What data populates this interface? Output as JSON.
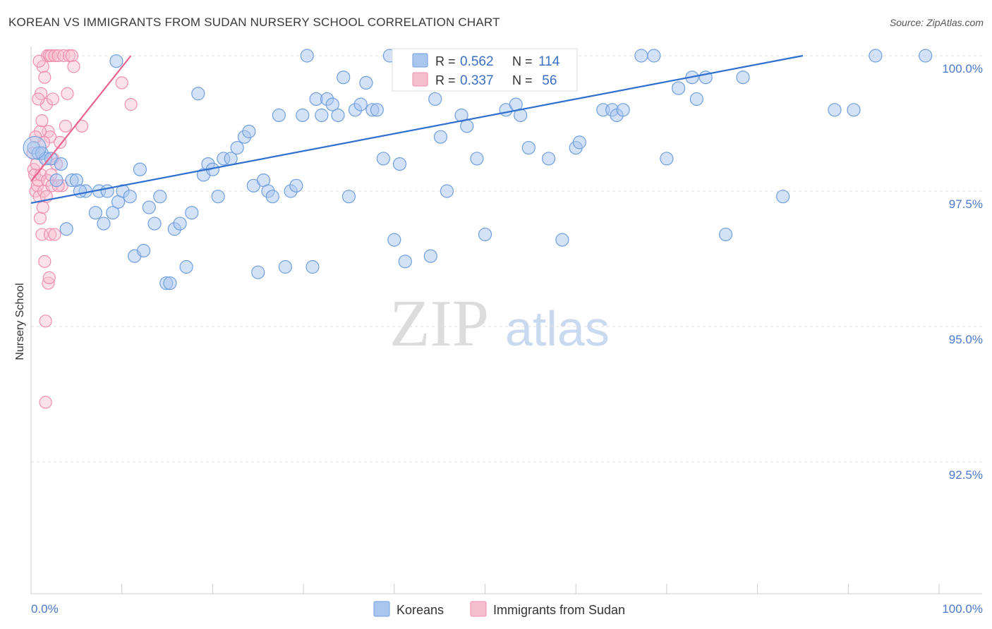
{
  "title": "KOREAN VS IMMIGRANTS FROM SUDAN NURSERY SCHOOL CORRELATION CHART",
  "source": "Source: ZipAtlas.com",
  "watermark": {
    "zip": "ZIP",
    "atlas": "atlas"
  },
  "colors": {
    "koreans_fill": "#a9c6ef",
    "koreans_stroke": "#6f9fdc",
    "koreans_line": "#2f6fce",
    "sudan_fill": "#f6bfd0",
    "sudan_stroke": "#ef8fad",
    "sudan_line": "#e8638e",
    "tick_text": "#4a79c9",
    "grid": "#dddddd"
  },
  "legend_top": {
    "rows": [
      {
        "r_label": "R = ",
        "r_value": "0.562",
        "n_label": "N = ",
        "n_value": "114"
      },
      {
        "r_label": "R = ",
        "r_value": "0.337",
        "n_label": "N = ",
        "n_value": " 56"
      }
    ]
  },
  "chart_data": {
    "type": "scatter",
    "title": "KOREAN VS IMMIGRANTS FROM SUDAN NURSERY SCHOOL CORRELATION CHART",
    "xlabel": "",
    "ylabel": "Nursery School",
    "xlim": [
      0,
      100
    ],
    "ylim": [
      90.0,
      100.2
    ],
    "x_tick_labels": [
      "0.0%",
      "100.0%"
    ],
    "y_ticks": [
      92.5,
      95.0,
      97.5,
      100.0
    ],
    "y_tick_labels": [
      "92.5%",
      "95.0%",
      "97.5%",
      "100.0%"
    ],
    "grid": true,
    "legend_position": "bottom-center",
    "series": [
      {
        "name": "Koreans",
        "r": 0.562,
        "n": 114,
        "trend": {
          "x": [
            0,
            85
          ],
          "y": [
            97.28,
            100.0
          ]
        },
        "points": [
          [
            0.3,
            98.3
          ],
          [
            0.8,
            98.2
          ],
          [
            1.2,
            98.2
          ],
          [
            1.6,
            98.1
          ],
          [
            2.2,
            98.1
          ],
          [
            2.8,
            97.7
          ],
          [
            3.3,
            98.0
          ],
          [
            3.9,
            96.8
          ],
          [
            4.5,
            97.7
          ],
          [
            5.0,
            97.7
          ],
          [
            6.0,
            97.5
          ],
          [
            5.4,
            97.5
          ],
          [
            7.1,
            97.1
          ],
          [
            7.5,
            97.5
          ],
          [
            8.0,
            96.9
          ],
          [
            8.4,
            97.5
          ],
          [
            9.0,
            97.1
          ],
          [
            9.6,
            97.3
          ],
          [
            10.1,
            97.5
          ],
          [
            10.9,
            97.4
          ],
          [
            9.4,
            99.9
          ],
          [
            11.4,
            96.3
          ],
          [
            12.0,
            97.9
          ],
          [
            12.4,
            96.4
          ],
          [
            13.0,
            97.2
          ],
          [
            13.6,
            96.9
          ],
          [
            14.2,
            97.4
          ],
          [
            14.9,
            95.8
          ],
          [
            15.3,
            95.8
          ],
          [
            15.8,
            96.8
          ],
          [
            16.4,
            96.9
          ],
          [
            17.1,
            96.1
          ],
          [
            17.7,
            97.1
          ],
          [
            18.4,
            99.3
          ],
          [
            19.0,
            97.8
          ],
          [
            19.5,
            98.0
          ],
          [
            20.0,
            97.9
          ],
          [
            20.6,
            97.4
          ],
          [
            21.2,
            98.1
          ],
          [
            22.0,
            98.1
          ],
          [
            22.7,
            98.3
          ],
          [
            23.5,
            98.5
          ],
          [
            24.0,
            98.6
          ],
          [
            24.5,
            97.6
          ],
          [
            25.0,
            96.0
          ],
          [
            25.6,
            97.7
          ],
          [
            26.1,
            97.5
          ],
          [
            26.6,
            97.4
          ],
          [
            27.3,
            98.9
          ],
          [
            28.0,
            96.1
          ],
          [
            28.6,
            97.5
          ],
          [
            29.2,
            97.6
          ],
          [
            29.9,
            98.9
          ],
          [
            30.4,
            100.0
          ],
          [
            31.0,
            96.1
          ],
          [
            31.4,
            99.2
          ],
          [
            32.0,
            98.9
          ],
          [
            32.6,
            99.2
          ],
          [
            33.2,
            99.1
          ],
          [
            33.8,
            98.9
          ],
          [
            34.4,
            99.6
          ],
          [
            35.0,
            97.4
          ],
          [
            35.7,
            99.0
          ],
          [
            36.3,
            99.1
          ],
          [
            36.9,
            99.5
          ],
          [
            37.6,
            99.0
          ],
          [
            38.1,
            99.0
          ],
          [
            38.8,
            98.1
          ],
          [
            39.5,
            100.0
          ],
          [
            40.0,
            96.6
          ],
          [
            40.6,
            98.0
          ],
          [
            41.2,
            96.2
          ],
          [
            41.6,
            100.0
          ],
          [
            42.3,
            100.0
          ],
          [
            42.8,
            99.6
          ],
          [
            43.4,
            100.0
          ],
          [
            44.0,
            96.3
          ],
          [
            44.5,
            99.2
          ],
          [
            45.1,
            98.5
          ],
          [
            45.8,
            97.5
          ],
          [
            47.4,
            98.9
          ],
          [
            48.0,
            98.7
          ],
          [
            48.5,
            99.5
          ],
          [
            49.1,
            98.1
          ],
          [
            50.5,
            100.0
          ],
          [
            50.0,
            96.7
          ],
          [
            51.1,
            100.0
          ],
          [
            52.3,
            99.0
          ],
          [
            53.4,
            99.1
          ],
          [
            53.9,
            98.9
          ],
          [
            54.8,
            98.3
          ],
          [
            57.0,
            98.1
          ],
          [
            58.5,
            96.6
          ],
          [
            59.0,
            100.0
          ],
          [
            60.0,
            98.3
          ],
          [
            60.4,
            98.4
          ],
          [
            63.0,
            99.0
          ],
          [
            64.0,
            99.0
          ],
          [
            64.5,
            98.9
          ],
          [
            65.2,
            99.0
          ],
          [
            67.2,
            100.0
          ],
          [
            68.6,
            100.0
          ],
          [
            70.0,
            98.1
          ],
          [
            71.3,
            99.4
          ],
          [
            72.8,
            99.6
          ],
          [
            73.3,
            99.2
          ],
          [
            74.3,
            99.6
          ],
          [
            76.5,
            96.7
          ],
          [
            78.4,
            99.6
          ],
          [
            82.8,
            97.4
          ],
          [
            88.5,
            99.0
          ],
          [
            90.6,
            99.0
          ],
          [
            93.0,
            100.0
          ],
          [
            98.5,
            100.0
          ]
        ]
      },
      {
        "name": "Immigrants from Sudan",
        "r": 0.337,
        "n": 56,
        "trend": {
          "x": [
            0,
            11
          ],
          "y": [
            97.68,
            100.0
          ]
        },
        "points": [
          [
            0.2,
            98.2
          ],
          [
            0.3,
            97.9
          ],
          [
            0.4,
            97.8
          ],
          [
            0.5,
            97.5
          ],
          [
            0.6,
            98.0
          ],
          [
            0.7,
            97.6
          ],
          [
            0.8,
            97.7
          ],
          [
            0.9,
            97.4
          ],
          [
            1.0,
            97.0
          ],
          [
            1.1,
            97.8
          ],
          [
            1.2,
            96.7
          ],
          [
            1.3,
            97.2
          ],
          [
            1.4,
            97.5
          ],
          [
            1.5,
            96.2
          ],
          [
            1.6,
            95.1
          ],
          [
            1.7,
            97.4
          ],
          [
            1.8,
            97.7
          ],
          [
            1.9,
            95.8
          ],
          [
            2.0,
            95.9
          ],
          [
            2.1,
            96.7
          ],
          [
            2.2,
            97.8
          ],
          [
            2.3,
            97.6
          ],
          [
            2.4,
            98.1
          ],
          [
            1.6,
            93.6
          ],
          [
            1.1,
            99.3
          ],
          [
            1.3,
            99.8
          ],
          [
            1.5,
            99.6
          ],
          [
            1.7,
            99.1
          ],
          [
            1.9,
            98.6
          ],
          [
            2.1,
            98.5
          ],
          [
            1.8,
            100.0
          ],
          [
            2.0,
            100.0
          ],
          [
            2.2,
            100.0
          ],
          [
            2.4,
            99.2
          ],
          [
            2.6,
            100.0
          ],
          [
            2.8,
            98.0
          ],
          [
            3.0,
            100.0
          ],
          [
            3.2,
            98.4
          ],
          [
            3.4,
            97.6
          ],
          [
            3.6,
            100.0
          ],
          [
            3.8,
            98.7
          ],
          [
            4.0,
            99.3
          ],
          [
            4.2,
            100.0
          ],
          [
            4.5,
            100.0
          ],
          [
            4.7,
            99.8
          ],
          [
            5.6,
            98.7
          ],
          [
            10.0,
            99.5
          ],
          [
            11.0,
            99.1
          ],
          [
            0.8,
            99.2
          ],
          [
            1.0,
            98.6
          ],
          [
            1.2,
            98.8
          ],
          [
            1.4,
            98.4
          ],
          [
            2.6,
            96.7
          ],
          [
            3.0,
            97.6
          ],
          [
            0.5,
            98.5
          ],
          [
            0.9,
            99.9
          ]
        ]
      }
    ]
  },
  "legend_bottom": {
    "items": [
      {
        "label": "Koreans"
      },
      {
        "label": "Immigrants from Sudan"
      }
    ]
  }
}
